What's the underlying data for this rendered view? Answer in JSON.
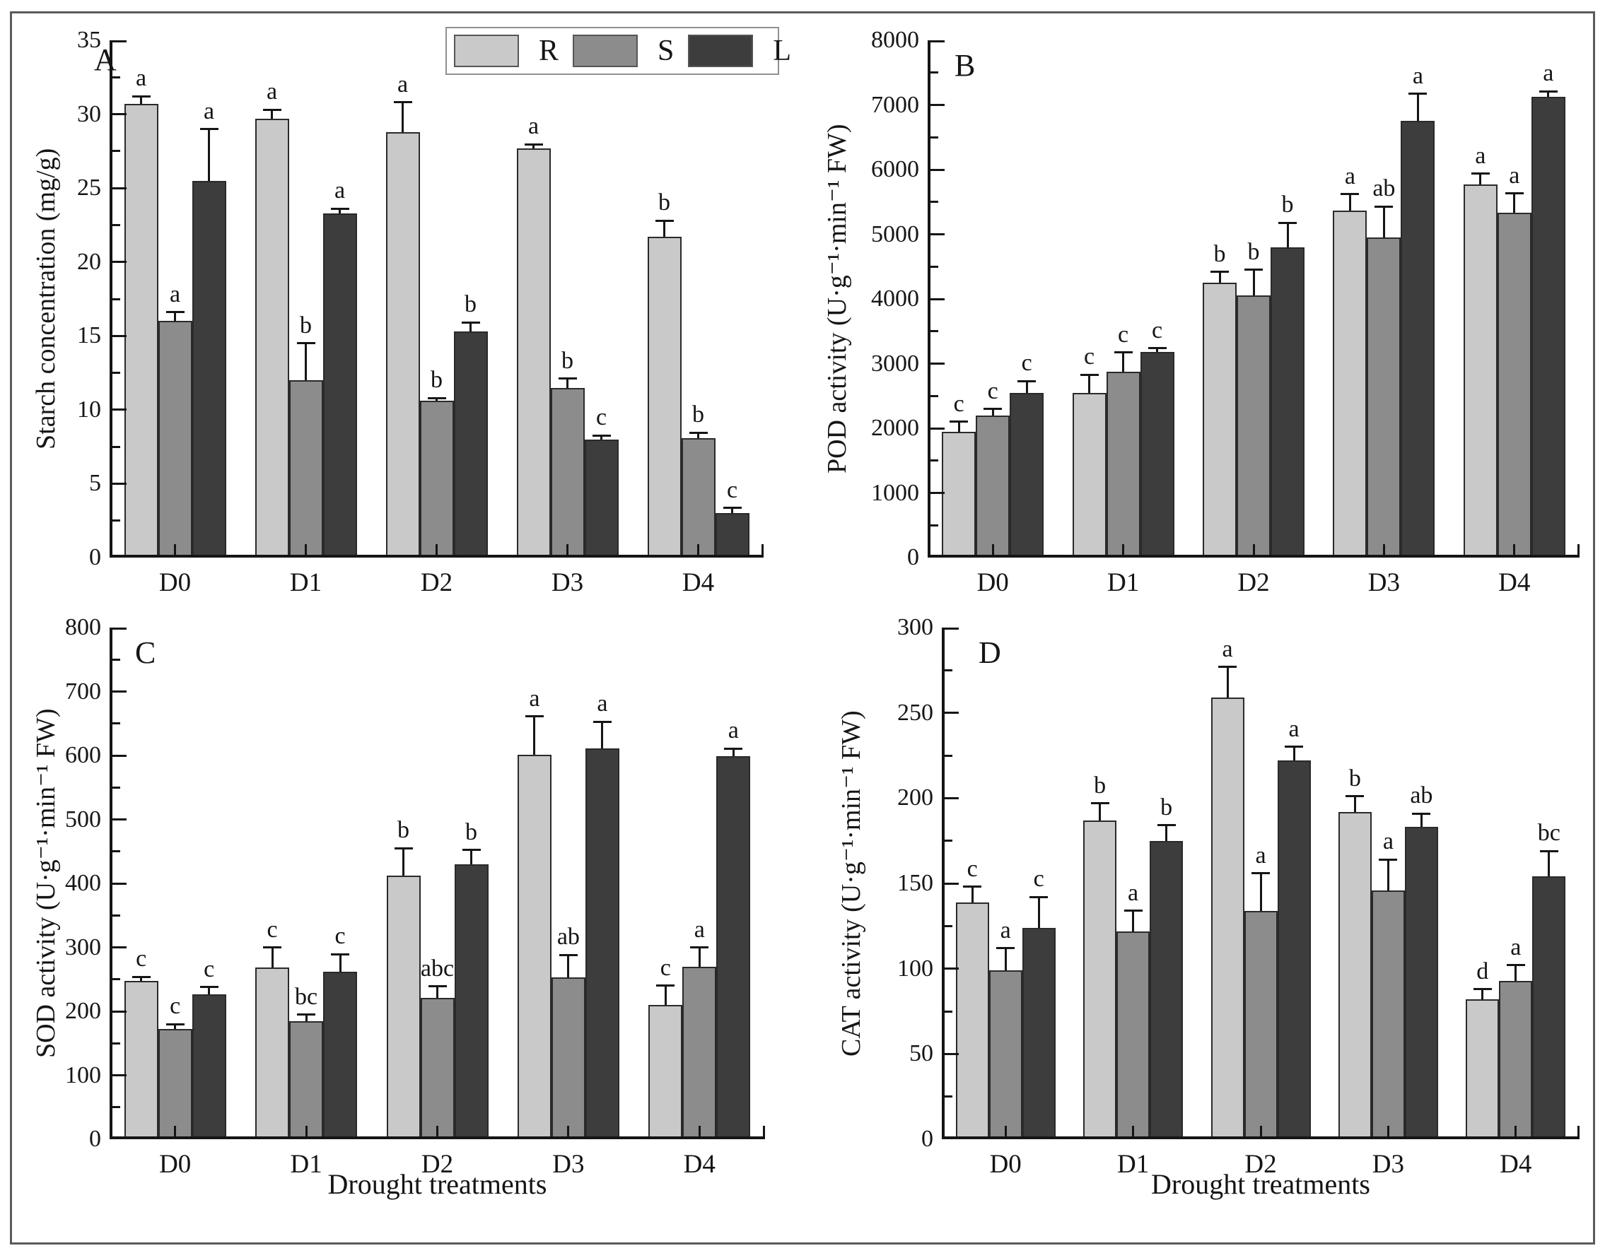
{
  "legend": {
    "entries": [
      {
        "label": "R",
        "color": "#c9c9c9"
      },
      {
        "label": "S",
        "color": "#8c8c8c"
      },
      {
        "label": "L",
        "color": "#3d3d3d"
      }
    ]
  },
  "chart_data": [
    {
      "type": "bar",
      "panel_label": "A",
      "ylabel": "Starch concentration (mg/g)",
      "xlabel": "",
      "ylim": [
        0,
        35
      ],
      "ytick_major": 5,
      "ytick_minor": 2.5,
      "grid": false,
      "legend_position": "top-right-inside",
      "categories": [
        "D0",
        "D1",
        "D2",
        "D3",
        "D4"
      ],
      "series": [
        {
          "name": "R",
          "values": [
            30.7,
            29.7,
            28.8,
            27.7,
            21.7
          ],
          "errors": [
            0.5,
            0.6,
            2.0,
            0.25,
            1.1
          ],
          "letters": [
            "a",
            "a",
            "a",
            "a",
            "b"
          ]
        },
        {
          "name": "S",
          "values": [
            16.0,
            12.0,
            10.6,
            11.5,
            8.1
          ],
          "errors": [
            0.6,
            2.5,
            0.2,
            0.6,
            0.35
          ],
          "letters": [
            "a",
            "b",
            "b",
            "b",
            "b"
          ]
        },
        {
          "name": "L",
          "values": [
            25.5,
            23.3,
            15.3,
            8.0,
            3.0
          ],
          "errors": [
            3.5,
            0.3,
            0.6,
            0.25,
            0.35
          ],
          "letters": [
            "a",
            "a",
            "b",
            "c",
            "c"
          ]
        }
      ]
    },
    {
      "type": "bar",
      "panel_label": "B",
      "ylabel": "POD activity (U·g⁻¹·min⁻¹ FW)",
      "xlabel": "",
      "ylim": [
        0,
        8000
      ],
      "ytick_major": 1000,
      "ytick_minor": 500,
      "grid": false,
      "categories": [
        "D0",
        "D1",
        "D2",
        "D3",
        "D4"
      ],
      "series": [
        {
          "name": "R",
          "values": [
            1950,
            2550,
            4250,
            5370,
            5770
          ],
          "errors": [
            150,
            280,
            170,
            250,
            170
          ],
          "letters": [
            "c",
            "c",
            "b",
            "a",
            "a"
          ]
        },
        {
          "name": "S",
          "values": [
            2200,
            2870,
            4050,
            4950,
            5330
          ],
          "errors": [
            100,
            300,
            400,
            480,
            300
          ],
          "letters": [
            "c",
            "c",
            "b",
            "ab",
            "a"
          ]
        },
        {
          "name": "L",
          "values": [
            2550,
            3180,
            4800,
            6750,
            7130
          ],
          "errors": [
            180,
            60,
            380,
            420,
            80
          ],
          "letters": [
            "c",
            "c",
            "b",
            "a",
            "a"
          ]
        }
      ]
    },
    {
      "type": "bar",
      "panel_label": "C",
      "ylabel": "SOD activity (U·g⁻¹·min⁻¹ FW)",
      "xlabel": "Drought treatments",
      "ylim": [
        0,
        800
      ],
      "ytick_major": 100,
      "ytick_minor": 50,
      "grid": false,
      "categories": [
        "D0",
        "D1",
        "D2",
        "D3",
        "D4"
      ],
      "series": [
        {
          "name": "R",
          "values": [
            248,
            268,
            412,
            601,
            210
          ],
          "errors": [
            6,
            32,
            43,
            60,
            30
          ],
          "letters": [
            "c",
            "c",
            "b",
            "a",
            "c"
          ]
        },
        {
          "name": "S",
          "values": [
            172,
            185,
            221,
            253,
            270
          ],
          "errors": [
            8,
            10,
            18,
            35,
            30
          ],
          "letters": [
            "c",
            "bc",
            "abc",
            "ab",
            "a"
          ]
        },
        {
          "name": "L",
          "values": [
            226,
            262,
            430,
            611,
            599
          ],
          "errors": [
            12,
            27,
            22,
            42,
            12
          ],
          "letters": [
            "c",
            "c",
            "b",
            "a",
            "a"
          ]
        }
      ]
    },
    {
      "type": "bar",
      "panel_label": "D",
      "ylabel": "CAT activity (U·g⁻¹·min⁻¹ FW)",
      "xlabel": "Drought treatments",
      "ylim": [
        0,
        300
      ],
      "ytick_major": 50,
      "ytick_minor": 25,
      "grid": false,
      "categories": [
        "D0",
        "D1",
        "D2",
        "D3",
        "D4"
      ],
      "series": [
        {
          "name": "R",
          "values": [
            139,
            187,
            259,
            192,
            82
          ],
          "errors": [
            9,
            10,
            18,
            9,
            6
          ],
          "letters": [
            "c",
            "b",
            "a",
            "b",
            "d"
          ]
        },
        {
          "name": "S",
          "values": [
            99,
            122,
            134,
            146,
            93
          ],
          "errors": [
            13,
            12,
            22,
            18,
            9
          ],
          "letters": [
            "a",
            "a",
            "a",
            "a",
            "a"
          ]
        },
        {
          "name": "L",
          "values": [
            124,
            175,
            222,
            183,
            154
          ],
          "errors": [
            18,
            9,
            8,
            8,
            15
          ],
          "letters": [
            "c",
            "b",
            "a",
            "ab",
            "bc"
          ]
        }
      ]
    }
  ]
}
